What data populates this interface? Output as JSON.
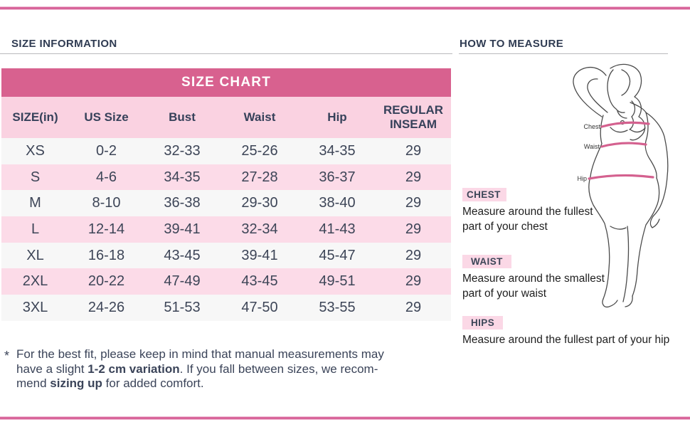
{
  "colors": {
    "accent_pink": "#d8618f",
    "rule_pink": "#d8659a",
    "header_row_pink": "#fad2e1",
    "alt_row_pink": "#fcdbe8",
    "alt_row_gray": "#f7f7f7",
    "heading_navy": "#2f3b52",
    "table_text": "#3d4557",
    "highlight_pink": "#fbd8e6",
    "band_pink": "#d4618f"
  },
  "left": {
    "section_title": "SIZE INFORMATION",
    "table": {
      "banner": "SIZE CHART",
      "columns": [
        "SIZE(in)",
        "US Size",
        "Bust",
        "Waist",
        "Hip",
        "REGULAR INSEAM"
      ],
      "rows": [
        [
          "XS",
          "0-2",
          "32-33",
          "25-26",
          "34-35",
          "29"
        ],
        [
          "S",
          "4-6",
          "34-35",
          "27-28",
          "36-37",
          "29"
        ],
        [
          "M",
          "8-10",
          "36-38",
          "29-30",
          "38-40",
          "29"
        ],
        [
          "L",
          "12-14",
          "39-41",
          "32-34",
          "41-43",
          "29"
        ],
        [
          "XL",
          "16-18",
          "43-45",
          "39-41",
          "45-47",
          "29"
        ],
        [
          "2XL",
          "20-22",
          "47-49",
          "43-45",
          "49-51",
          "29"
        ],
        [
          "3XL",
          "24-26",
          "51-53",
          "47-50",
          "53-55",
          "29"
        ]
      ]
    },
    "footnote": {
      "marker": "*",
      "lines": [
        [
          {
            "t": "For the best fit, please keep in mind that manual measurements may"
          }
        ],
        [
          {
            "t": "have a slight "
          },
          {
            "t": "1-2 cm variation",
            "b": true
          },
          {
            "t": ". If you fall between sizes, we recom-"
          }
        ],
        [
          {
            "t": "mend "
          },
          {
            "t": "sizing up",
            "b": true
          },
          {
            "t": " for added comfort."
          }
        ]
      ]
    }
  },
  "right": {
    "section_title": "HOW TO MEASURE",
    "figure_labels": {
      "chest": "Chest",
      "waist": "Waist",
      "hip": "Hip"
    },
    "measures": [
      {
        "label": "CHEST",
        "text": "Measure around the fullest part of your chest"
      },
      {
        "label": "WAIST",
        "text": "Measure around the smallest part of your waist"
      },
      {
        "label": "HIPS",
        "text": "Measure around the fullest part of your hip"
      }
    ]
  }
}
